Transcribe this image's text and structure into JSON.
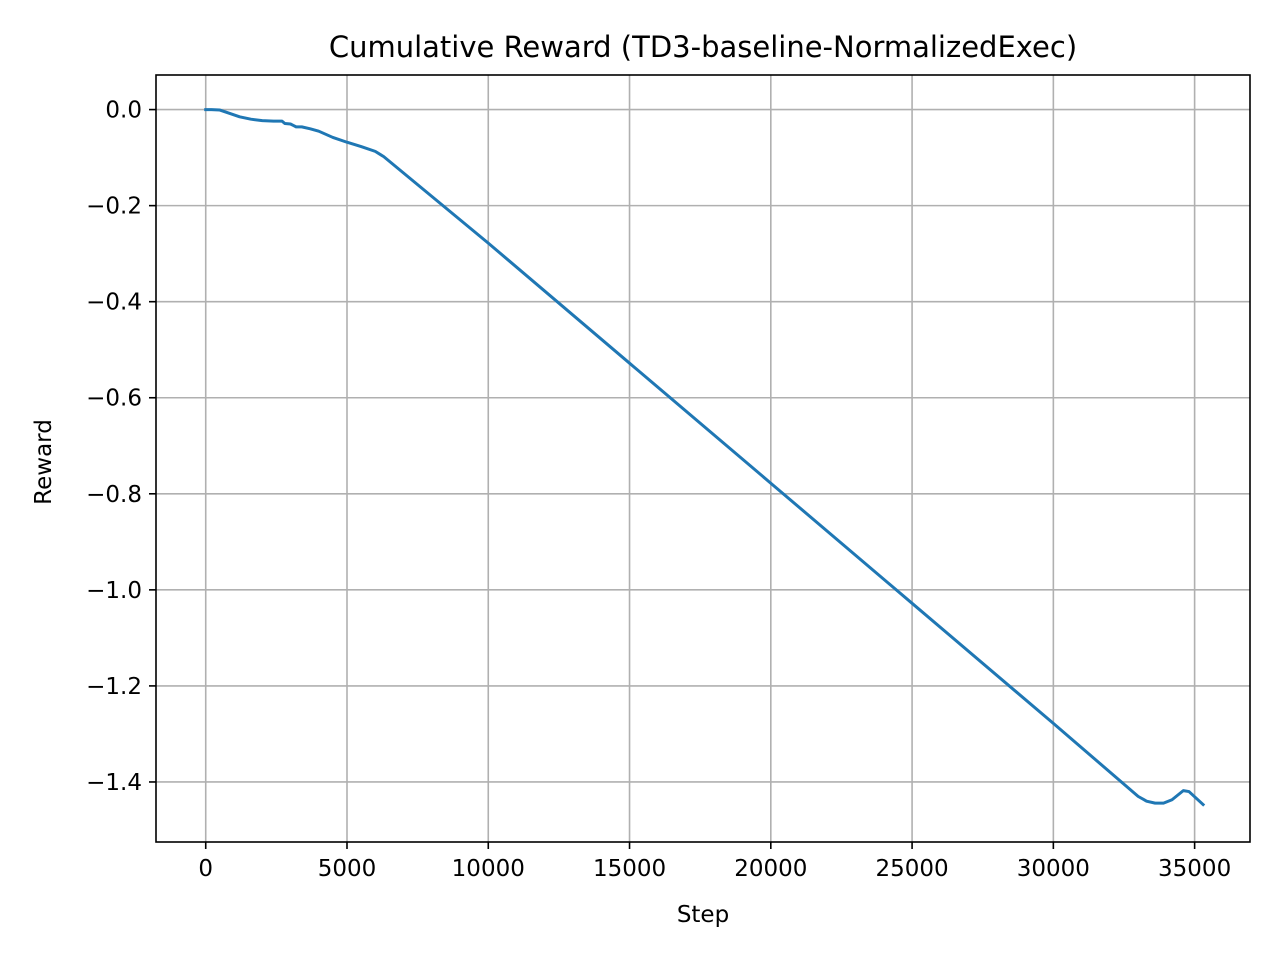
{
  "chart_data": {
    "type": "line",
    "title": "Cumulative Reward (TD3-baseline-NormalizedExec)",
    "xlabel": "Step",
    "ylabel": "Reward",
    "xlim": [
      -1760,
      36960
    ],
    "ylim": [
      -1.525,
      0.072
    ],
    "xticks": [
      0,
      5000,
      10000,
      15000,
      20000,
      25000,
      30000,
      35000
    ],
    "xtick_labels": [
      "0",
      "5000",
      "10000",
      "15000",
      "20000",
      "25000",
      "30000",
      "35000"
    ],
    "yticks": [
      0.0,
      -0.2,
      -0.4,
      -0.6,
      -0.8,
      -1.0,
      -1.2,
      -1.4
    ],
    "ytick_labels": [
      "0.0",
      "−0.2",
      "−0.4",
      "−0.6",
      "−0.8",
      "−1.0",
      "−1.2",
      "−1.4"
    ],
    "grid": true,
    "line_color": "#1f77b4",
    "series": [
      {
        "x": [
          0,
          200,
          500,
          800,
          1200,
          1600,
          2000,
          2400,
          2700,
          2800,
          3000,
          3100,
          3200,
          3400,
          3700,
          4000,
          4500,
          5000,
          5500,
          6000,
          6300,
          10000,
          15000,
          20000,
          25000,
          30000,
          33000,
          33300,
          33600,
          33900,
          34200,
          34600,
          34800,
          35300
        ],
        "y": [
          0.0,
          0.0,
          -0.001,
          -0.007,
          -0.015,
          -0.02,
          -0.023,
          -0.024,
          -0.024,
          -0.029,
          -0.03,
          -0.033,
          -0.036,
          -0.036,
          -0.04,
          -0.045,
          -0.058,
          -0.068,
          -0.077,
          -0.087,
          -0.098,
          -0.278,
          -0.528,
          -0.778,
          -1.028,
          -1.278,
          -1.43,
          -1.44,
          -1.444,
          -1.444,
          -1.437,
          -1.418,
          -1.42,
          -1.447
        ]
      }
    ]
  }
}
